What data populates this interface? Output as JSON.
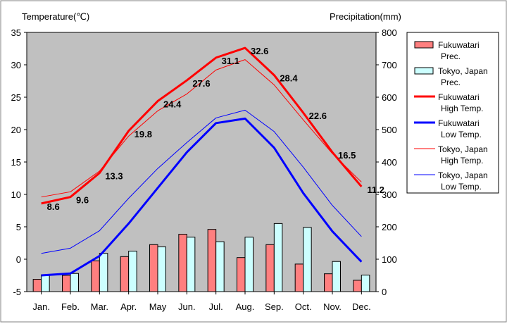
{
  "chart_data": {
    "type": "bar+line",
    "months": [
      "Jan.",
      "Feb.",
      "Mar.",
      "Apr.",
      "May",
      "Jun.",
      "Jul.",
      "Aug.",
      "Sep.",
      "Oct.",
      "Nov.",
      "Dec."
    ],
    "left_axis": {
      "title": "Temperature(℃)",
      "min": -5,
      "max": 35,
      "ticks": [
        -5,
        0,
        5,
        10,
        15,
        20,
        25,
        30,
        35
      ]
    },
    "right_axis": {
      "title": "Precipitation(mm)",
      "min": 0,
      "max": 800,
      "ticks": [
        0,
        100,
        200,
        300,
        400,
        500,
        600,
        700,
        800
      ]
    },
    "grid": false,
    "plot_background": "#c0c0c0",
    "legend_position": "right",
    "bar_series": [
      {
        "legend": [
          "Fukuwatari",
          "Prec."
        ],
        "color": "#ff7f7f",
        "values": [
          38,
          50,
          95,
          108,
          145,
          177,
          192,
          105,
          145,
          85,
          55,
          35
        ]
      },
      {
        "legend": [
          "Tokyo, Japan",
          "Prec."
        ],
        "color": "#ccffff",
        "values": [
          52,
          56,
          118,
          125,
          138,
          168,
          154,
          168,
          210,
          198,
          93,
          51
        ]
      }
    ],
    "line_series": [
      {
        "legend": [
          "Fukuwatari",
          "High Temp."
        ],
        "color": "#ff0000",
        "width": 3,
        "values": [
          8.6,
          9.6,
          13.3,
          19.8,
          24.4,
          27.6,
          31.1,
          32.6,
          28.4,
          22.6,
          16.5,
          11.2
        ],
        "labels": [
          "8.6",
          "9.6",
          "13.3",
          "19.8",
          "24.4",
          "27.6",
          "31.1",
          "32.6",
          "28.4",
          "22.6",
          "16.5",
          "11.2"
        ]
      },
      {
        "legend": [
          "Fukuwatari",
          "Low Temp."
        ],
        "color": "#0000ff",
        "width": 3,
        "values": [
          -2.5,
          -2.2,
          0.5,
          5.5,
          11.0,
          16.5,
          21.0,
          21.7,
          17.2,
          10.2,
          4.3,
          -0.4
        ]
      },
      {
        "legend": [
          "Tokyo, Japan",
          "High Temp."
        ],
        "color": "#ff0000",
        "width": 1,
        "values": [
          9.6,
          10.4,
          13.6,
          19.0,
          22.9,
          25.5,
          29.2,
          30.8,
          26.9,
          21.5,
          16.3,
          11.9
        ]
      },
      {
        "legend": [
          "Tokyo, Japan",
          "Low Temp."
        ],
        "color": "#0000ff",
        "width": 1,
        "values": [
          0.9,
          1.7,
          4.4,
          9.4,
          14.0,
          18.0,
          21.8,
          23.0,
          19.7,
          14.2,
          8.3,
          3.5
        ]
      }
    ]
  }
}
